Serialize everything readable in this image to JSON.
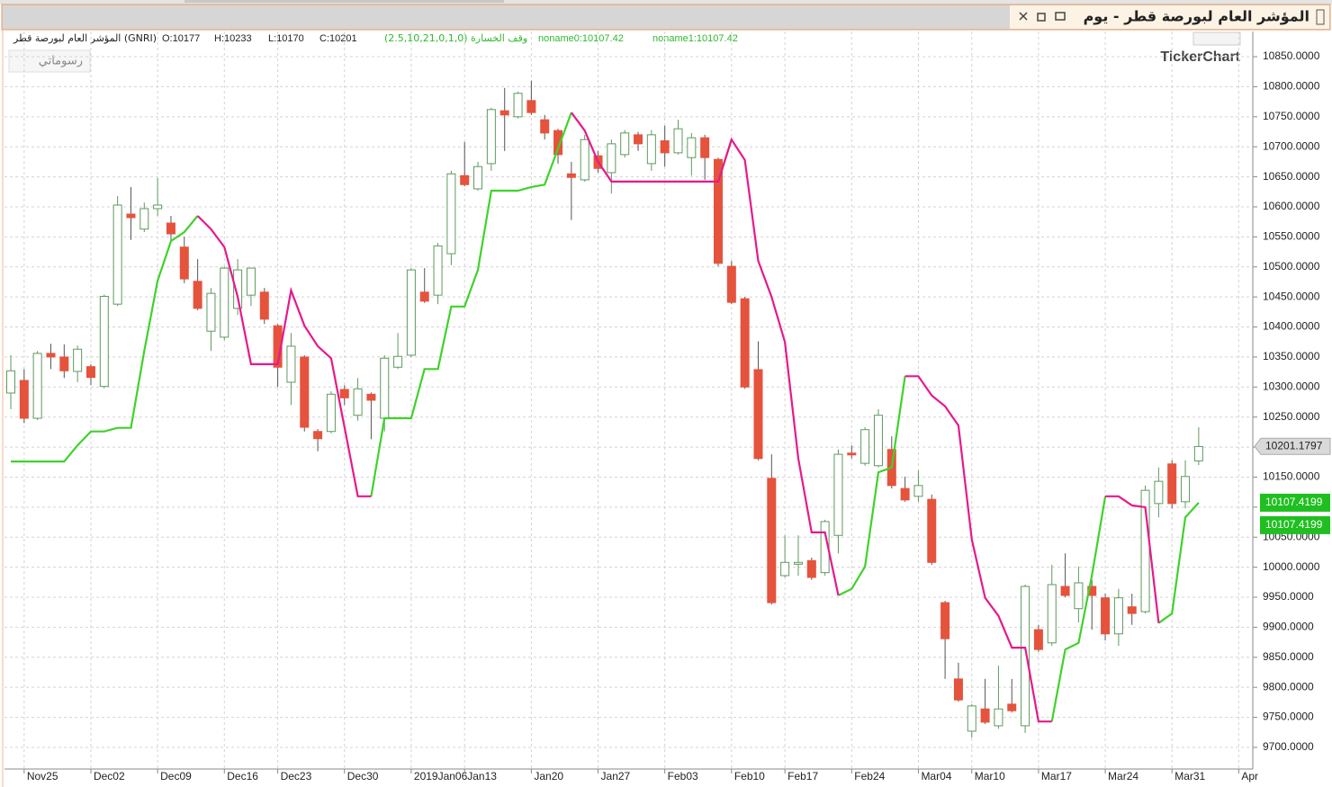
{
  "chart_data": {
    "type": "candlestick",
    "title": "المؤشر العام لبورصة قطر - يوم",
    "symbol_text": "المؤشر العام لبورصة قطر (GNRI)",
    "ohlc_text": [
      "O:10177",
      "H:10233",
      "L:10170",
      "C:10201"
    ],
    "indicator_text": "(2.5,10,21,0,1,0) وقف الخسارة",
    "indicator_values_text": [
      "noname0:10107.42",
      "noname1:10107.42"
    ],
    "categories": [
      null,
      "Nov25",
      null,
      null,
      null,
      null,
      "Dec02",
      null,
      null,
      null,
      null,
      "Dec09",
      null,
      null,
      null,
      null,
      "Dec16",
      null,
      null,
      null,
      "Dec23",
      null,
      null,
      null,
      null,
      "Dec30",
      null,
      null,
      null,
      null,
      "2019Jan06",
      null,
      null,
      null,
      "Jan13",
      null,
      null,
      null,
      null,
      "Jan20",
      null,
      null,
      null,
      null,
      "Jan27",
      null,
      null,
      null,
      null,
      "Feb03",
      null,
      null,
      null,
      null,
      "Feb10",
      null,
      null,
      null,
      "Feb17",
      null,
      null,
      null,
      null,
      "Feb24",
      null,
      null,
      null,
      null,
      "Mar04",
      null,
      null,
      null,
      "Mar10",
      null,
      null,
      null,
      null,
      "Mar17",
      null,
      null,
      null,
      null,
      "Mar24",
      null,
      null,
      null,
      null,
      "Mar31",
      null,
      null,
      null,
      null,
      "Apr"
    ],
    "open": [
      10290,
      10311,
      10248,
      10356,
      10350,
      10326,
      10334,
      10301,
      10438,
      10588,
      10563,
      10597,
      10573,
      10533,
      10476,
      10393,
      10383,
      10431,
      10453,
      10458,
      10402,
      10308,
      10350,
      10226,
      10226,
      10296,
      10253,
      10288,
      10248,
      10333,
      10353,
      10458,
      10453,
      10522,
      10652,
      10630,
      10672,
      10760,
      10750,
      10777,
      10745,
      10727,
      10655,
      10645,
      10685,
      10657,
      10687,
      10720,
      10672,
      10710,
      10690,
      10682,
      10715,
      10679,
      10501,
      10447,
      10329,
      10148,
      9986,
      10005,
      10011,
      9991,
      10053,
      10190,
      10173,
      10169,
      10196,
      10131,
      10118,
      10113,
      9941,
      9814,
      9727,
      9764,
      9736,
      9772,
      9736,
      9896,
      9874,
      9968,
      9931,
      9968,
      9949,
      9889,
      9934,
      9926,
      10106,
      10172,
      10109,
      10177,
      null,
      null,
      null
    ],
    "high": [
      10353,
      10330,
      10360,
      10372,
      10371,
      10369,
      10338,
      10454,
      10618,
      10633,
      10607,
      10648,
      10585,
      10550,
      10513,
      10465,
      10501,
      10513,
      10498,
      10465,
      10405,
      10390,
      10353,
      10230,
      10293,
      10303,
      10315,
      10291,
      10353,
      10390,
      10498,
      10498,
      10540,
      10660,
      10708,
      10675,
      10765,
      10798,
      10792,
      10810,
      10753,
      10730,
      10675,
      10720,
      10693,
      10712,
      10728,
      10725,
      10728,
      10735,
      10745,
      10723,
      10720,
      10682,
      10510,
      10450,
      10376,
      10188,
      10053,
      10053,
      10016,
      10079,
      10196,
      10203,
      10233,
      10263,
      10218,
      10151,
      10161,
      10121,
      9944,
      9841,
      9772,
      9814,
      9836,
      9814,
      9971,
      9904,
      10004,
      10023,
      10001,
      9979,
      9956,
      9964,
      9956,
      10136,
      10166,
      10178,
      10178,
      10233,
      null,
      null,
      null
    ],
    "low": [
      10263,
      10240,
      10245,
      10330,
      10315,
      10308,
      10303,
      10298,
      10435,
      10545,
      10558,
      10585,
      10543,
      10473,
      10428,
      10360,
      10378,
      10420,
      10435,
      10405,
      10300,
      10270,
      10226,
      10193,
      10223,
      10270,
      10244,
      10213,
      10226,
      10330,
      10350,
      10440,
      10438,
      10503,
      10634,
      10627,
      10660,
      10693,
      10747,
      10753,
      10712,
      10672,
      10578,
      10642,
      10657,
      10622,
      10682,
      10693,
      10660,
      10667,
      10687,
      10652,
      10645,
      10501,
      10438,
      10297,
      10178,
      9938,
      9983,
      9986,
      9979,
      9986,
      10023,
      10181,
      10169,
      10166,
      10131,
      10109,
      10109,
      10004,
      9814,
      9776,
      9716,
      9739,
      9731,
      9758,
      9724,
      9859,
      9869,
      9950,
      9908,
      9896,
      9878,
      9869,
      9904,
      9923,
      10083,
      10098,
      10098,
      10170,
      null,
      null,
      null
    ],
    "close": [
      10327,
      10248,
      10356,
      10350,
      10327,
      10363,
      10316,
      10451,
      10603,
      10582,
      10597,
      10603,
      10555,
      10480,
      10431,
      10456,
      10498,
      10495,
      10498,
      10413,
      10333,
      10368,
      10233,
      10214,
      10288,
      10282,
      10297,
      10278,
      10348,
      10351,
      10495,
      10443,
      10535,
      10655,
      10637,
      10667,
      10762,
      10753,
      10789,
      10757,
      10723,
      10687,
      10649,
      10712,
      10664,
      10705,
      10723,
      10705,
      10720,
      10690,
      10730,
      10715,
      10682,
      10506,
      10441,
      10300,
      10181,
      9941,
      10008,
      10008,
      9983,
      10076,
      10188,
      10187,
      10229,
      10253,
      10136,
      10112,
      10136,
      10008,
      9881,
      9779,
      9769,
      9742,
      9764,
      9761,
      9968,
      9863,
      9971,
      9953,
      9974,
      9953,
      9889,
      9949,
      9923,
      10128,
      10143,
      10106,
      10151,
      10201,
      null,
      null,
      null
    ],
    "up_color": "#5f9a5f",
    "down_color": "#e5533d",
    "series": [
      {
        "color": "#3fd22b",
        "values": [
          10176,
          10176,
          10176,
          10176,
          10176,
          10203,
          10226,
          10226,
          10232,
          10232,
          10360,
          10477,
          10543,
          10558,
          10585,
          null,
          null,
          null,
          null,
          null,
          null,
          null,
          null,
          null,
          null,
          null,
          null,
          10118,
          10248,
          10248,
          10248,
          10330,
          10330,
          10434,
          10434,
          10495,
          10627,
          10627,
          10627,
          10633,
          10637,
          10697,
          10757,
          null,
          null,
          null,
          null,
          null,
          null,
          null,
          null,
          null,
          null,
          10642,
          10712,
          null,
          null,
          null,
          null,
          null,
          null,
          null,
          9953,
          9964,
          10001,
          10158,
          10166,
          10318,
          null,
          null,
          null,
          null,
          null,
          null,
          null,
          null,
          null,
          null,
          9743,
          9863,
          9874,
          9986,
          10118,
          null,
          null,
          null,
          9907,
          9923,
          10083,
          10107.42,
          null,
          null,
          null
        ]
      },
      {
        "color": "#e6198c",
        "values": [
          null,
          null,
          null,
          null,
          null,
          null,
          null,
          null,
          null,
          null,
          null,
          null,
          null,
          null,
          10585,
          10563,
          10533,
          10450,
          10338,
          10338,
          10338,
          10461,
          10402,
          10368,
          10348,
          10233,
          10118,
          10118,
          null,
          null,
          null,
          null,
          null,
          null,
          null,
          null,
          null,
          null,
          null,
          null,
          null,
          null,
          10757,
          10727,
          10675,
          10642,
          10642,
          10642,
          10642,
          10642,
          10642,
          10642,
          10642,
          10642,
          10712,
          10678,
          10510,
          10450,
          10375,
          10181,
          10058,
          10058,
          9953,
          null,
          null,
          null,
          null,
          10318,
          10318,
          10286,
          10268,
          10236,
          10046,
          9949,
          9919,
          9866,
          9866,
          9743,
          9743,
          null,
          null,
          null,
          10118,
          10118,
          10103,
          10100,
          9907,
          null,
          null,
          null,
          null,
          null,
          null
        ]
      }
    ],
    "ylim": [
      9664,
      10892
    ],
    "yticks": [
      {
        "value": 9700,
        "label": "9700.0000"
      },
      {
        "value": 9750,
        "label": "9750.0000"
      },
      {
        "value": 9800,
        "label": "9800.0000"
      },
      {
        "value": 9850,
        "label": "9850.0000"
      },
      {
        "value": 9900,
        "label": "9900.0000"
      },
      {
        "value": 9950,
        "label": "9950.0000"
      },
      {
        "value": 10000,
        "label": "10000.0000"
      },
      {
        "value": 10050,
        "label": "10050.0000"
      },
      {
        "value": 10100,
        "label": "10100.0000"
      },
      {
        "value": 10150,
        "label": "10150.0000"
      },
      {
        "value": 10200,
        "label": "10200.0000"
      },
      {
        "value": 10250,
        "label": "10250.0000"
      },
      {
        "value": 10300,
        "label": "10300.0000"
      },
      {
        "value": 10350,
        "label": "10350.0000"
      },
      {
        "value": 10400,
        "label": "10400.0000"
      },
      {
        "value": 10450,
        "label": "10450.0000"
      },
      {
        "value": 10500,
        "label": "10500.0000"
      },
      {
        "value": 10550,
        "label": "10550.0000"
      },
      {
        "value": 10600,
        "label": "10600.0000"
      },
      {
        "value": 10650,
        "label": "10650.0000"
      },
      {
        "value": 10700,
        "label": "10700.0000"
      },
      {
        "value": 10750,
        "label": "10750.0000"
      },
      {
        "value": 10800,
        "label": "10800.0000"
      },
      {
        "value": 10850,
        "label": "10850.0000"
      }
    ],
    "grid": true,
    "last_price": 10201.1797,
    "last_price_color": "#d9d9d9",
    "indicator_prices": [
      10107.4199,
      10107.4199
    ],
    "indicator_price_color": "#1fbf1f"
  },
  "toolbar": {
    "button": "رسوماتي",
    "logo": "TickerChart"
  }
}
